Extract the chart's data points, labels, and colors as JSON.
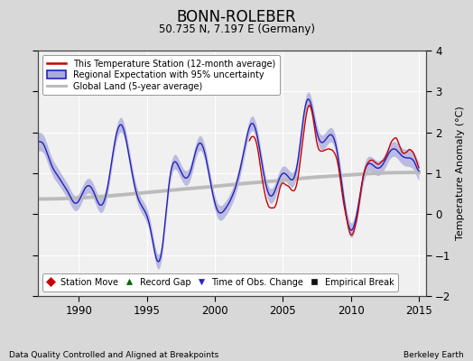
{
  "title": "BONN-ROLEBER",
  "subtitle": "50.735 N, 7.197 E (Germany)",
  "ylabel": "Temperature Anomaly (°C)",
  "xlabel_left": "Data Quality Controlled and Aligned at Breakpoints",
  "xlabel_right": "Berkeley Earth",
  "ylim": [
    -2,
    4
  ],
  "xlim": [
    1987.0,
    2015.5
  ],
  "yticks": [
    -2,
    -1,
    0,
    1,
    2,
    3,
    4
  ],
  "xticks": [
    1990,
    1995,
    2000,
    2005,
    2010,
    2015
  ],
  "background_color": "#d8d8d8",
  "plot_bg_color": "#f0f0f0",
  "red_color": "#cc0000",
  "blue_color": "#2222bb",
  "blue_fill_color": "#aaaadd",
  "gray_color": "#bbbbbb",
  "grid_color": "#ffffff",
  "legend_entries": [
    "This Temperature Station (12-month average)",
    "Regional Expectation with 95% uncertainty",
    "Global Land (5-year average)"
  ],
  "bottom_legend": [
    {
      "marker": "D",
      "color": "#cc0000",
      "label": "Station Move"
    },
    {
      "marker": "^",
      "color": "#006600",
      "label": "Record Gap"
    },
    {
      "marker": "v",
      "color": "#2222bb",
      "label": "Time of Obs. Change"
    },
    {
      "marker": "s",
      "color": "#111111",
      "label": "Empirical Break"
    }
  ]
}
